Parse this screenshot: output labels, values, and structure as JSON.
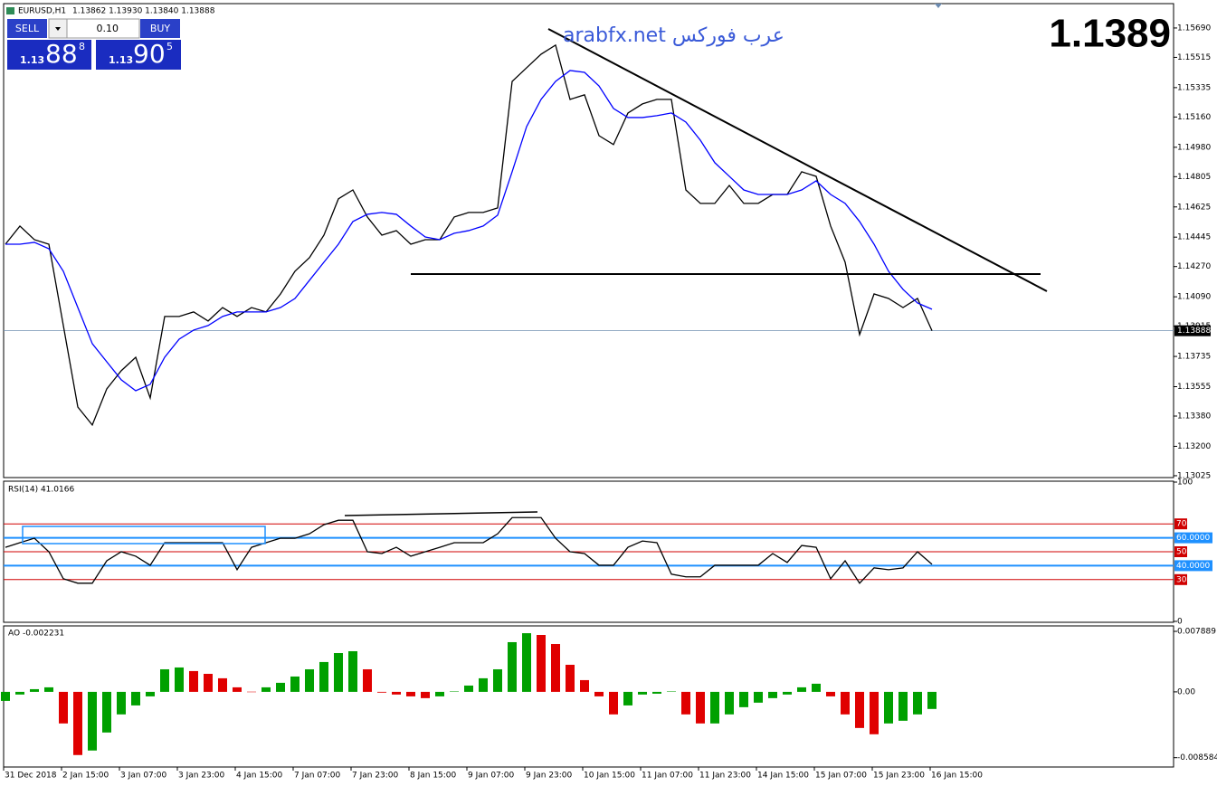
{
  "header": {
    "symbol": "EURUSD,H1",
    "quote": "1.13862 1.13930 1.13840 1.13888"
  },
  "trade_panel": {
    "sell": "SELL",
    "lot": "0.10",
    "buy": "BUY",
    "sell_big_prefix": "1.13",
    "sell_big": "88",
    "sell_small": "8",
    "buy_big_prefix": "1.13",
    "buy_big": "90",
    "buy_small": "5"
  },
  "watermark": "arabfx.net عرب فوركس",
  "big_price": "1.1389",
  "time_axis": {
    "labels": [
      "31 Dec 2018",
      "2 Jan 15:00",
      "3 Jan 07:00",
      "3 Jan 23:00",
      "4 Jan 15:00",
      "7 Jan 07:00",
      "7 Jan 23:00",
      "8 Jan 15:00",
      "9 Jan 07:00",
      "9 Jan 23:00",
      "10 Jan 15:00",
      "11 Jan 07:00",
      "11 Jan 23:00",
      "14 Jan 15:00",
      "15 Jan 07:00",
      "15 Jan 23:00",
      "16 Jan 15:00"
    ]
  },
  "chart_data": [
    {
      "type": "line",
      "current_price": 1.13888,
      "ylim": [
        1.13014,
        1.15835
      ],
      "yticks": [
        {
          "value": 1.1569,
          "label": "1.15690"
        },
        1.15515,
        1.15335,
        {
          "value": 1.1516,
          "label": "1.15160"
        },
        {
          "value": 1.1498,
          "label": "1.14980"
        },
        1.14805,
        1.14625,
        1.14445,
        {
          "value": 1.1427,
          "label": "1.14270"
        },
        {
          "value": 1.1409,
          "label": "1.14090"
        },
        1.13915,
        1.13735,
        1.13555,
        {
          "value": 1.1338,
          "label": "1.13380"
        },
        {
          "value": 1.132,
          "label": "1.13200"
        },
        1.13025
      ],
      "series": [
        {
          "color": "#000000",
          "values": [
            1.14403,
            1.14511,
            1.1443,
            1.14403,
            1.13919,
            1.13434,
            1.13327,
            1.13542,
            1.1365,
            1.1373,
            1.13488,
            1.13973,
            1.13973,
            1.14,
            1.13946,
            1.14026,
            1.13973,
            1.14026,
            1.14,
            1.14107,
            1.14242,
            1.14323,
            1.14457,
            1.14673,
            1.14726,
            1.14565,
            1.14457,
            1.14484,
            1.14403,
            1.1443,
            1.1443,
            1.14565,
            1.14592,
            1.14592,
            1.14619,
            1.15372,
            1.15453,
            1.15534,
            1.15588,
            1.15265,
            1.15292,
            1.15049,
            1.14996,
            1.15184,
            1.15238,
            1.15265,
            1.15265,
            1.14726,
            1.14646,
            1.14646,
            1.14753,
            1.14646,
            1.14646,
            1.14699,
            1.14699,
            1.14834,
            1.14807,
            1.14511,
            1.14296,
            1.13865,
            1.14107,
            1.1408,
            1.14026,
            1.1408,
            1.13888
          ]
        },
        {
          "color": "#0000ff",
          "values": [
            1.14403,
            1.14403,
            1.14414,
            1.14376,
            1.14242,
            1.14026,
            1.13811,
            1.13703,
            1.13596,
            1.13531,
            1.13569,
            1.1373,
            1.13838,
            1.13892,
            1.13919,
            1.13973,
            1.14,
            1.14,
            1.14,
            1.14026,
            1.1408,
            1.14188,
            1.14296,
            1.14403,
            1.14538,
            1.14581,
            1.14592,
            1.14581,
            1.14511,
            1.14446,
            1.1443,
            1.14468,
            1.14484,
            1.14511,
            1.14576,
            1.14834,
            1.15103,
            1.15265,
            1.15372,
            1.15437,
            1.15426,
            1.15345,
            1.15211,
            1.15157,
            1.15157,
            1.15168,
            1.15184,
            1.1513,
            1.15022,
            1.14888,
            1.14807,
            1.14726,
            1.14699,
            1.14699,
            1.14699,
            1.14726,
            1.1478,
            1.14699,
            1.14646,
            1.14538,
            1.14403,
            1.14242,
            1.14134,
            1.14053,
            1.14016
          ]
        }
      ]
    },
    {
      "type": "line",
      "title": "RSI(14) 41.0166",
      "ylim": [
        0,
        100
      ],
      "yticks": [
        0,
        100
      ],
      "levels": [
        {
          "value": 70,
          "color": "#d00000"
        },
        {
          "value": 60,
          "label": "60.0000",
          "color": "#1e90ff"
        },
        {
          "value": 50,
          "color": "#d00000"
        },
        {
          "value": 40,
          "label": "40.0000",
          "color": "#1e90ff"
        },
        {
          "value": 30,
          "color": "#d00000"
        }
      ],
      "series": [
        {
          "color": "#000000",
          "values": [
            53.2,
            56.5,
            59.7,
            50,
            30.6,
            27.4,
            27.4,
            43.5,
            50,
            46.8,
            40.3,
            56.5,
            56.5,
            56.5,
            56.5,
            56.5,
            37.1,
            53.2,
            56.5,
            59.7,
            59.7,
            62.9,
            69.4,
            72.6,
            72.6,
            50,
            48.7,
            53.2,
            46.8,
            50,
            53.2,
            56.5,
            56.5,
            56.5,
            62.9,
            74.5,
            74.5,
            74.5,
            59.7,
            50,
            48.7,
            40.3,
            40.3,
            53.2,
            57.7,
            56.5,
            33.9,
            32,
            32,
            40.3,
            40.3,
            40.3,
            40.3,
            48.7,
            42.3,
            54.5,
            53.2,
            30.6,
            43.5,
            27.4,
            38.4,
            37.1,
            38.4,
            50,
            41.0166
          ]
        }
      ]
    },
    {
      "type": "bar",
      "title": "AO -0.002231",
      "ylim": [
        -0.0098,
        0.0086
      ],
      "yticks": [
        0.007889,
        {
          "value": 0,
          "label": "0.00"
        },
        -0.008584
      ],
      "up_color": "#00a000",
      "down_color": "#e00000",
      "values": [
        -0.00118,
        -0.00035,
        0.00035,
        0.00059,
        -0.00412,
        -0.00824,
        -0.00765,
        -0.0053,
        -0.00294,
        -0.00177,
        -0.00059,
        0.00294,
        0.00318,
        0.00271,
        0.00235,
        0.00177,
        0.00059,
        2e-05,
        0.00059,
        0.00118,
        0.002,
        0.00294,
        0.00389,
        0.00506,
        0.0053,
        0.00294,
        -0.0001,
        -0.00035,
        -0.00059,
        -0.00082,
        -0.00059,
        5e-05,
        0.00082,
        0.00177,
        0.00294,
        0.00648,
        0.00765,
        0.00742,
        0.00624,
        0.00353,
        0.00153,
        -0.00059,
        -0.00294,
        -0.00177,
        -0.00035,
        -0.00024,
        5e-05,
        -0.00294,
        -0.00412,
        -0.00412,
        -0.00294,
        -0.002,
        -0.00141,
        -0.00082,
        -0.00035,
        0.00059,
        0.00106,
        -0.00059,
        -0.00294,
        -0.00471,
        -0.00553,
        -0.00412,
        -0.00377,
        -0.00294,
        -0.002231
      ]
    }
  ]
}
